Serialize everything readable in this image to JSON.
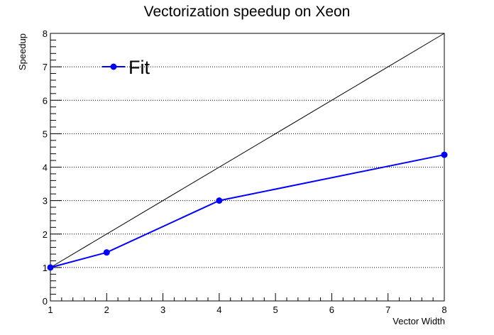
{
  "chart_data": {
    "type": "line",
    "title": "Vectorization speedup on Xeon",
    "xlabel": "Vector Width",
    "ylabel": "Speedup",
    "xlim": [
      1,
      8
    ],
    "ylim": [
      0,
      8
    ],
    "x_ticks": [
      "1",
      "2",
      "3",
      "4",
      "5",
      "6",
      "7",
      "8"
    ],
    "y_ticks": [
      "0",
      "1",
      "2",
      "3",
      "4",
      "5",
      "6",
      "7",
      "8"
    ],
    "grid": "horizontal",
    "legend": {
      "placement": "top-left",
      "entries": [
        "Fit"
      ]
    },
    "series": [
      {
        "name": "Fit",
        "color": "#0000ff",
        "marker": "circle",
        "x": [
          1,
          2,
          4,
          8
        ],
        "y": [
          1.0,
          1.45,
          3.0,
          4.37
        ]
      }
    ],
    "reference_line": {
      "color": "#000000",
      "x": [
        1,
        8
      ],
      "y": [
        1,
        8
      ]
    }
  }
}
